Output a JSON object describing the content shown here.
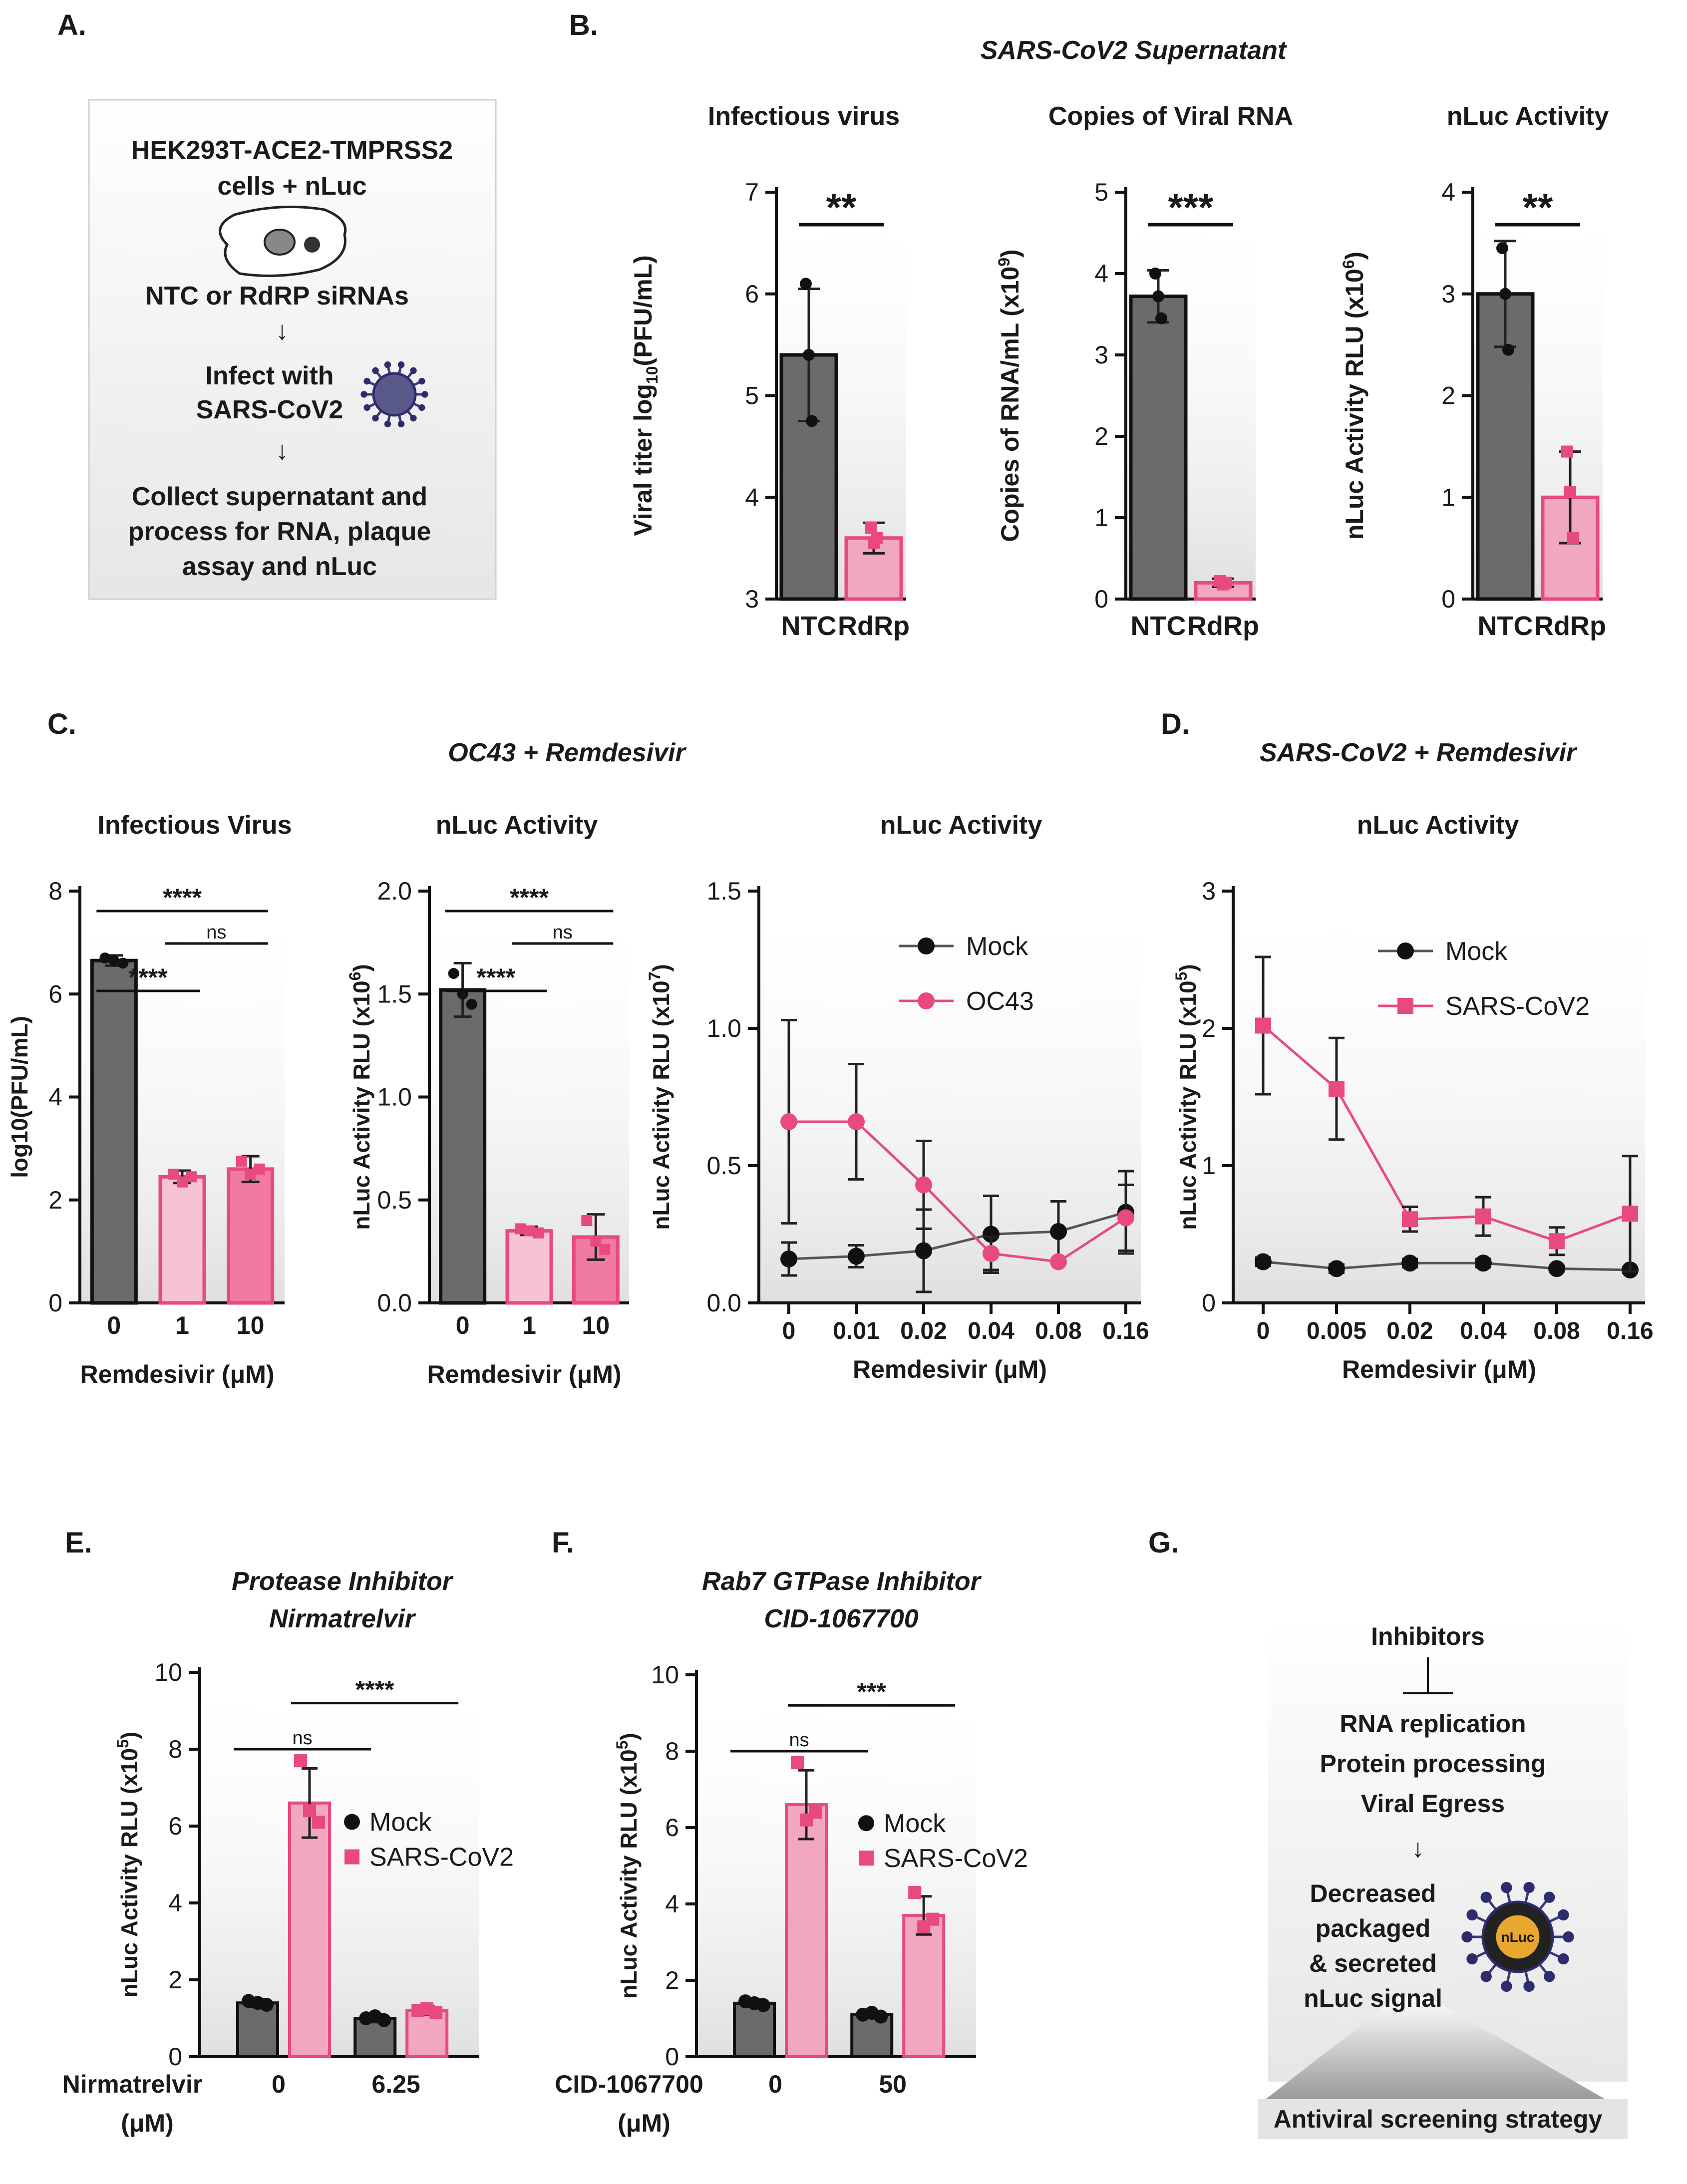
{
  "panel_labels": {
    "a": "A.",
    "b": "B.",
    "c": "C.",
    "d": "D.",
    "e": "E.",
    "f": "F.",
    "g": "G."
  },
  "colors": {
    "ntc": "#6b6b6b",
    "rdrp": "#f2a7c0",
    "pink": "#e8497f",
    "mock": "#111111",
    "sars": "#e8497f",
    "dose1": "#f6c3d3",
    "dose10": "#f07aa2",
    "box_bg": "#ececec"
  },
  "panel_a": {
    "lines": [
      "HEK293T-ACE2-TMPRSS2",
      "cells + nLuc",
      "NTC or RdRP siRNAs",
      "Infect with",
      "SARS-CoV2",
      "Collect supernatant and",
      "process for RNA, plaque",
      "assay and nLuc"
    ],
    "arrow": "↓",
    "icons": [
      "cell-icon",
      "virus-icon"
    ]
  },
  "panel_b_title": "SARS-CoV2 Supernatant",
  "panel_c_title": "OC43 + Remdesivir",
  "panel_d_title": "SARS-CoV2 + Remdesivir",
  "panel_g": {
    "lines": [
      "Inhibitors",
      "RNA replication",
      "Protein processing",
      "Viral Egress",
      "Decreased",
      "packaged",
      "& secreted",
      "nLuc signal"
    ],
    "arrow": "↓",
    "footer": "Antiviral screening strategy",
    "virus_label": "nLuc"
  },
  "chart_data": [
    {
      "id": "b1",
      "panel": "B",
      "type": "bar",
      "title": "Infectious virus",
      "ylabel": "Viral titer log10(PFU/mL)",
      "ylabel_main": "Viral titer log",
      "ylabel_sub": "10",
      "ylabel_end": "(PFU/mL)",
      "ylim": [
        3,
        7
      ],
      "yticks": [
        "3",
        "4",
        "5",
        "6",
        "7"
      ],
      "categories": [
        "NTC",
        "RdRp"
      ],
      "values": [
        5.4,
        3.6
      ],
      "errors": [
        0.65,
        0.15
      ],
      "points": [
        [
          6.1,
          5.4,
          4.75
        ],
        [
          3.7,
          3.55,
          3.6
        ]
      ],
      "significance": [
        {
          "from": 0,
          "to": 1,
          "label": "**"
        }
      ]
    },
    {
      "id": "b2",
      "panel": "B",
      "type": "bar",
      "title": "Copies of Viral RNA",
      "ylabel": "Copies of RNA/mL (x10^9)",
      "ylabel_main": "Copies of RNA/mL (x10",
      "ylabel_sup": "9",
      "ylabel_end": ")",
      "ylim": [
        0,
        5
      ],
      "yticks": [
        "0",
        "1",
        "2",
        "3",
        "4",
        "5"
      ],
      "categories": [
        "NTC",
        "RdRp"
      ],
      "values": [
        3.72,
        0.2
      ],
      "errors": [
        0.32,
        0.05
      ],
      "points": [
        [
          4.0,
          3.72,
          3.45
        ],
        [
          0.22,
          0.18,
          0.2
        ]
      ],
      "significance": [
        {
          "from": 0,
          "to": 1,
          "label": "***"
        }
      ]
    },
    {
      "id": "b3",
      "panel": "B",
      "type": "bar",
      "title": "nLuc Activity",
      "ylabel": "nLuc Activity RLU (x10^6)",
      "ylabel_main": "nLuc Activity RLU (x10",
      "ylabel_sup": "6",
      "ylabel_end": ")",
      "ylim": [
        0,
        4
      ],
      "yticks": [
        "0",
        "1",
        "2",
        "3",
        "4"
      ],
      "categories": [
        "NTC",
        "RdRp"
      ],
      "values": [
        3.0,
        1.0
      ],
      "errors": [
        0.52,
        0.45
      ],
      "points": [
        [
          3.45,
          3.0,
          2.45
        ],
        [
          1.45,
          1.05,
          0.6
        ]
      ],
      "significance": [
        {
          "from": 0,
          "to": 1,
          "label": "**"
        }
      ]
    },
    {
      "id": "c1",
      "panel": "C",
      "type": "bar",
      "title": "Infectious Virus",
      "ylabel": "log10(PFU/mL)",
      "xlabel": "Remdesivir (μM)",
      "ylim": [
        0,
        8
      ],
      "yticks": [
        "0",
        "2",
        "4",
        "6",
        "8"
      ],
      "categories": [
        "0",
        "1",
        "10"
      ],
      "values": [
        6.65,
        2.45,
        2.6
      ],
      "errors": [
        0.1,
        0.12,
        0.25
      ],
      "points": [
        [
          6.7,
          6.65,
          6.6
        ],
        [
          2.5,
          2.35,
          2.45
        ],
        [
          2.75,
          2.5,
          2.6
        ]
      ],
      "significance": [
        {
          "from": 0,
          "to": 1,
          "label": "****"
        },
        {
          "from": 0,
          "to": 2,
          "label": "****"
        },
        {
          "from": 1,
          "to": 2,
          "label": "ns"
        }
      ]
    },
    {
      "id": "c2",
      "panel": "C",
      "type": "bar",
      "title": "nLuc Activity",
      "ylabel": "nLuc Activity RLU (x10^6)",
      "ylabel_main": "nLuc Activity RLU (x10",
      "ylabel_sup": "6",
      "ylabel_end": ")",
      "xlabel": "Remdesivir (μM)",
      "ylim": [
        0,
        2
      ],
      "yticks": [
        "0.0",
        "0.5",
        "1.0",
        "1.5",
        "2.0"
      ],
      "categories": [
        "0",
        "1",
        "10"
      ],
      "values": [
        1.52,
        0.35,
        0.32
      ],
      "errors": [
        0.13,
        0.02,
        0.11
      ],
      "points": [
        [
          1.6,
          1.5,
          1.45
        ],
        [
          0.36,
          0.35,
          0.34
        ],
        [
          0.4,
          0.3,
          0.26
        ]
      ],
      "significance": [
        {
          "from": 0,
          "to": 1,
          "label": "****"
        },
        {
          "from": 0,
          "to": 2,
          "label": "****"
        },
        {
          "from": 1,
          "to": 2,
          "label": "ns"
        }
      ]
    },
    {
      "id": "c3",
      "panel": "C",
      "type": "line",
      "title": "nLuc Activity",
      "ylabel": "nLuc Activity RLU (x10^7)",
      "ylabel_main": "nLuc Activity RLU (x10",
      "ylabel_sup": "7",
      "ylabel_end": ")",
      "xlabel": "Remdesivir (μM)",
      "ylim": [
        0,
        1.5
      ],
      "yticks": [
        "0.0",
        "0.5",
        "1.0",
        "1.5"
      ],
      "x": [
        "0",
        "0.01",
        "0.02",
        "0.04",
        "0.08",
        "0.16"
      ],
      "series": [
        {
          "name": "Mock",
          "marker": "circle",
          "color": "#111111",
          "values": [
            0.16,
            0.17,
            0.19,
            0.25,
            0.26,
            0.33
          ],
          "errors": [
            0.06,
            0.04,
            0.15,
            0.14,
            0.11,
            0.15
          ]
        },
        {
          "name": "OC43",
          "marker": "circle",
          "color": "#e8497f",
          "values": [
            0.66,
            0.66,
            0.43,
            0.18,
            0.15,
            0.31
          ],
          "errors": [
            0.37,
            0.21,
            0.16,
            0.06,
            0.0,
            0.12
          ]
        }
      ],
      "legend": "top-right"
    },
    {
      "id": "d1",
      "panel": "D",
      "type": "line",
      "title": "nLuc Activity",
      "ylabel": "nLuc Activity RLU (x10^5)",
      "ylabel_main": "nLuc Activity RLU (x10",
      "ylabel_sup": "5",
      "ylabel_end": ")",
      "xlabel": "Remdesivir (μM)",
      "ylim": [
        0,
        3
      ],
      "yticks": [
        "0",
        "1",
        "2",
        "3"
      ],
      "x": [
        "0",
        "0.005",
        "0.02",
        "0.04",
        "0.08",
        "0.16"
      ],
      "series": [
        {
          "name": "Mock",
          "marker": "circle",
          "color": "#111111",
          "values": [
            0.3,
            0.25,
            0.29,
            0.29,
            0.25,
            0.24
          ],
          "errors": [
            0.03,
            0.03,
            0.03,
            0.03,
            0.02,
            0.02
          ]
        },
        {
          "name": "SARS-CoV2",
          "marker": "square",
          "color": "#e8497f",
          "values": [
            2.02,
            1.56,
            0.61,
            0.63,
            0.45,
            0.65
          ],
          "errors": [
            0.5,
            0.37,
            0.09,
            0.14,
            0.1,
            0.42
          ]
        }
      ],
      "legend": "top-right"
    },
    {
      "id": "e1",
      "panel": "E",
      "type": "bar",
      "title": "Protease Inhibitor",
      "subtitle": "Nirmatrelvir",
      "ylabel": "nLuc Activity RLU (x10^5)",
      "ylabel_main": "nLuc Activity RLU (x10",
      "ylabel_sup": "5",
      "ylabel_end": ")",
      "xlabel": "Nirmatrelvir",
      "xunit": "(μM)",
      "ylim": [
        0,
        10
      ],
      "yticks": [
        "0",
        "2",
        "4",
        "6",
        "8",
        "10"
      ],
      "groups": [
        "0",
        "6.25"
      ],
      "series": [
        {
          "name": "Mock",
          "marker": "circle",
          "color": "#6b6b6b",
          "values": [
            1.4,
            1.0
          ],
          "errors": [
            0.1,
            0.1
          ],
          "points": [
            [
              1.45,
              1.4,
              1.35
            ],
            [
              1.0,
              1.05,
              0.95
            ]
          ]
        },
        {
          "name": "SARS-CoV2",
          "marker": "square",
          "color": "#f2a7c0",
          "values": [
            6.6,
            1.2
          ],
          "errors": [
            0.9,
            0.1
          ],
          "points": [
            [
              7.7,
              6.4,
              6.1
            ],
            [
              1.2,
              1.25,
              1.15
            ]
          ]
        }
      ],
      "significance": [
        {
          "label": "ns",
          "level": "low"
        },
        {
          "label": "****",
          "level": "high"
        }
      ],
      "legend": "center-right"
    },
    {
      "id": "f1",
      "panel": "F",
      "type": "bar",
      "title": "Rab7 GTPase Inhibitor",
      "subtitle": "CID-1067700",
      "ylabel": "nLuc Activity RLU (x10^5)",
      "ylabel_main": "nLuc Activity RLU (x10",
      "ylabel_sup": "5",
      "ylabel_end": ")",
      "xlabel": "CID-1067700",
      "xunit": "(μM)",
      "ylim": [
        0,
        10
      ],
      "yticks": [
        "0",
        "2",
        "4",
        "6",
        "8",
        "10"
      ],
      "groups": [
        "0",
        "50"
      ],
      "series": [
        {
          "name": "Mock",
          "marker": "circle",
          "color": "#6b6b6b",
          "values": [
            1.4,
            1.1
          ],
          "errors": [
            0.1,
            0.05
          ],
          "points": [
            [
              1.45,
              1.4,
              1.35
            ],
            [
              1.1,
              1.15,
              1.05
            ]
          ]
        },
        {
          "name": "SARS-CoV2",
          "marker": "square",
          "color": "#f2a7c0",
          "values": [
            6.6,
            3.7
          ],
          "errors": [
            0.9,
            0.5
          ],
          "points": [
            [
              7.7,
              6.2,
              6.4
            ],
            [
              4.3,
              3.4,
              3.6
            ]
          ]
        }
      ],
      "significance": [
        {
          "label": "ns",
          "level": "low"
        },
        {
          "label": "***",
          "level": "high"
        }
      ],
      "legend": "center-right"
    }
  ]
}
